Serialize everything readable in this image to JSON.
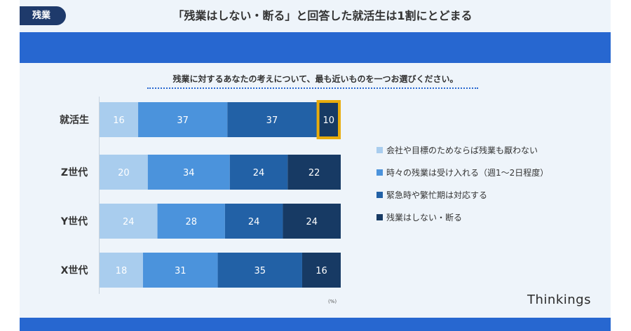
{
  "tag": "残業",
  "headline": "「残業はしない・断る」と回答した就活生は1割にとどまる",
  "question": "残業に対するあなたの考えについて、最も近いものを一つお選びください。",
  "brand": "Thinkings",
  "colors": {
    "accent": "#2767d0",
    "highlight": "#e8ac0c",
    "series": [
      "#a9cdee",
      "#4b93dc",
      "#2261a6",
      "#173a64"
    ]
  },
  "chart_data": {
    "type": "bar",
    "orientation": "horizontal",
    "stacked": true,
    "unit": "(%)",
    "categories": [
      "就活生",
      "Z世代",
      "Y世代",
      "X世代"
    ],
    "series": [
      {
        "name": "会社や目標のためならば残業も厭わない",
        "values": [
          16,
          20,
          24,
          18
        ]
      },
      {
        "name": "時々の残業は受け入れる（週1〜2日程度）",
        "values": [
          37,
          34,
          28,
          31
        ]
      },
      {
        "name": "緊急時や繁忙期は対応する",
        "values": [
          37,
          24,
          24,
          35
        ]
      },
      {
        "name": "残業はしない・断る",
        "values": [
          10,
          22,
          24,
          16
        ]
      }
    ],
    "highlight": {
      "category": "就活生",
      "series": "残業はしない・断る"
    },
    "legend": "right"
  }
}
